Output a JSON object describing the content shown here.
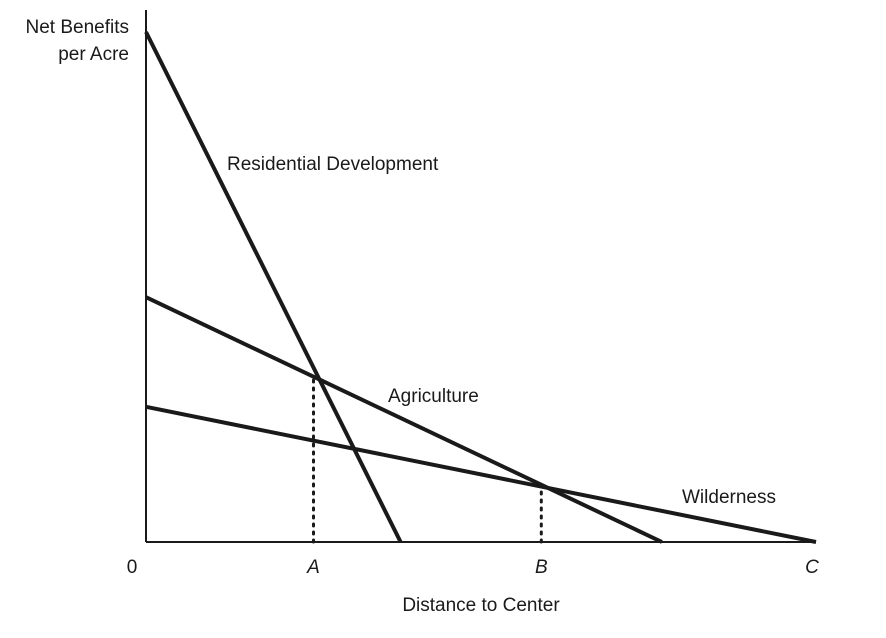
{
  "chart_data": {
    "type": "line",
    "xlabel": "Distance to Center",
    "ylabel_lines": [
      "Net Benefits",
      "per Acre"
    ],
    "xlim": [
      0,
      10
    ],
    "ylim": [
      0,
      10
    ],
    "x_ticks": [
      {
        "label": "0",
        "x": 0,
        "italic": false
      },
      {
        "label": "A",
        "x": 2.5,
        "italic": true
      },
      {
        "label": "B",
        "x": 5.9,
        "italic": true
      },
      {
        "label": "C",
        "x": 10,
        "italic": true
      }
    ],
    "series": [
      {
        "name": "Residential Development",
        "points": [
          [
            0,
            10
          ],
          [
            3.8,
            0
          ]
        ]
      },
      {
        "name": "Agriculture",
        "points": [
          [
            0,
            4.8
          ],
          [
            7.7,
            0
          ]
        ]
      },
      {
        "name": "Wilderness",
        "points": [
          [
            0,
            2.65
          ],
          [
            10,
            0
          ]
        ]
      }
    ],
    "reference_lines": [
      {
        "x": 2.5,
        "y": 3.2
      },
      {
        "x": 5.9,
        "y": 1.08
      }
    ]
  }
}
